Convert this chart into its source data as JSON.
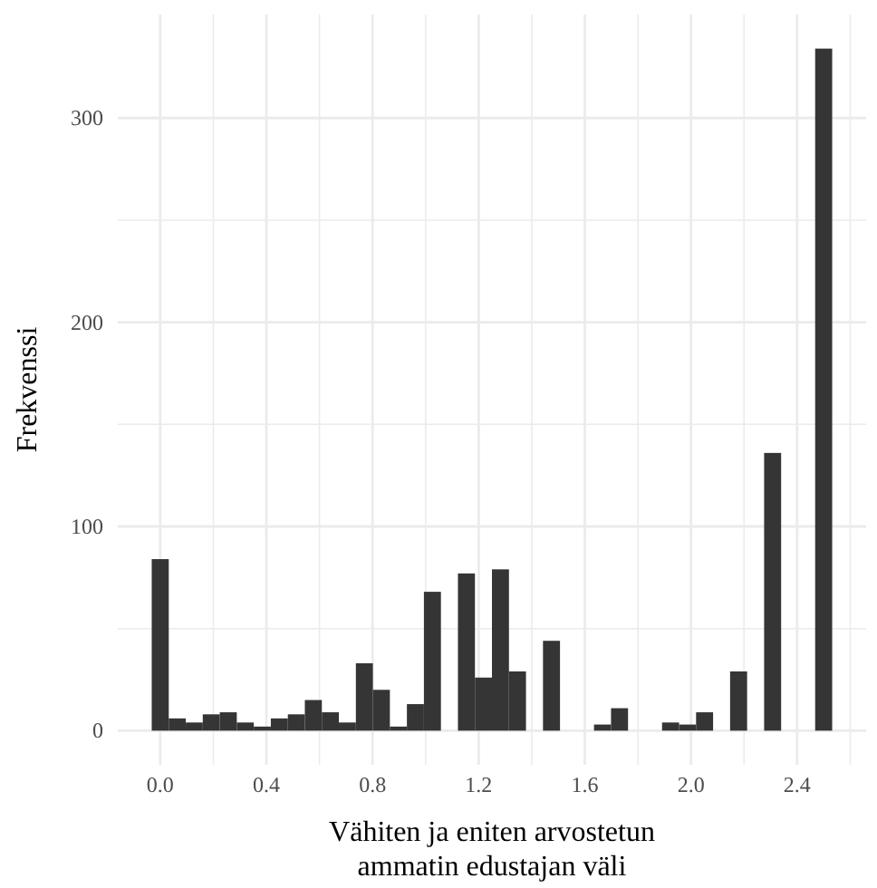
{
  "chart_data": {
    "type": "histogram",
    "xlabel": "Vähiten ja eniten arvostetun\nammatin edustajan väli",
    "ylabel": "Frekvenssi",
    "color": "#353535",
    "bins": [
      -0.0321,
      0.0321,
      0.0962,
      0.1603,
      0.2244,
      0.2885,
      0.3526,
      0.4167,
      0.4808,
      0.5449,
      0.609,
      0.6731,
      0.7372,
      0.8013,
      0.8654,
      0.9295,
      0.9936,
      1.0577,
      1.1218,
      1.1859,
      1.25,
      1.3141,
      1.3782,
      1.4423,
      1.5064,
      1.5705,
      1.6346,
      1.6987,
      1.7628,
      1.8269,
      1.891,
      1.9551,
      2.0192,
      2.0833,
      2.1474,
      2.2115,
      2.2756,
      2.3397,
      2.4038,
      2.4679,
      2.5321
    ],
    "values": [
      84,
      6,
      4,
      8,
      9,
      4,
      2,
      6,
      8,
      15,
      9,
      4,
      33,
      20,
      2,
      13,
      68,
      0,
      77,
      26,
      79,
      29,
      0,
      44,
      0,
      0,
      3,
      11,
      0,
      0,
      4,
      3,
      9,
      0,
      29,
      0,
      136,
      0,
      0,
      334
    ],
    "xlim": [
      -0.16,
      2.66
    ],
    "ylim": [
      -16.7,
      350.7
    ],
    "xticks": [
      {
        "value": 0,
        "label": "0.0"
      },
      {
        "value": 0.2,
        "label": null
      },
      {
        "value": 0.4,
        "label": "0.4"
      },
      {
        "value": 0.6,
        "label": null
      },
      {
        "value": 0.8,
        "label": "0.8"
      },
      {
        "value": 1,
        "label": null
      },
      {
        "value": 1.2,
        "label": "1.2"
      },
      {
        "value": 1.4,
        "label": null
      },
      {
        "value": 1.6,
        "label": "1.6"
      },
      {
        "value": 1.8,
        "label": null
      },
      {
        "value": 2,
        "label": "2.0"
      },
      {
        "value": 2.2,
        "label": null
      },
      {
        "value": 2.4,
        "label": "2.4"
      },
      {
        "value": 2.6,
        "label": null
      }
    ],
    "yticks": [
      0,
      {
        "value": 50,
        "label": null
      },
      100,
      {
        "value": 150,
        "label": null
      },
      200,
      {
        "value": 250,
        "label": null
      },
      300
    ],
    "grid": true
  }
}
